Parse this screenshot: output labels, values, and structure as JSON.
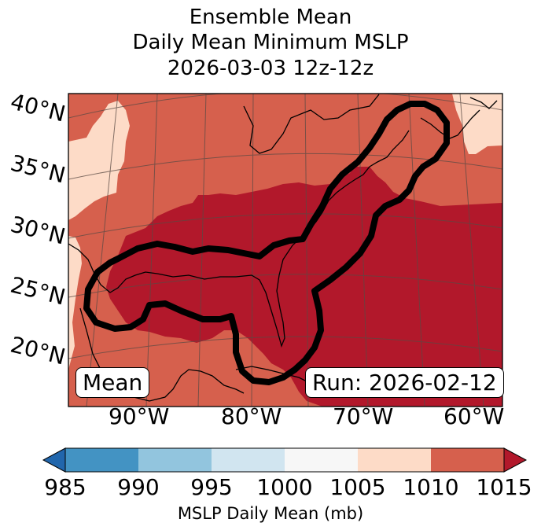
{
  "title": {
    "line1": "Ensemble Mean",
    "line2": "Daily Mean Minimum MSLP",
    "line3": "2026-03-03 12z-12z"
  },
  "map": {
    "lat_labels": [
      "40°N",
      "35°N",
      "30°N",
      "25°N",
      "20°N"
    ],
    "lon_labels": [
      "90°W",
      "80°W",
      "70°W",
      "60°W"
    ],
    "colors": {
      "c1005_1010": "#fddbc7",
      "c1010_1015": "#d6604d",
      "c1015_plus": "#b2182b",
      "contour": "#000000",
      "coastline": "#000000",
      "graticule": "#5a4a44"
    }
  },
  "badges": {
    "left": "Mean",
    "right": "Run: 2026-02-12"
  },
  "colorbar": {
    "label": "MSLP Daily Mean (mb)",
    "ticks": [
      "985",
      "990",
      "995",
      "1000",
      "1005",
      "1010",
      "1015"
    ],
    "colors": [
      "#2166ac",
      "#4393c3",
      "#92c5de",
      "#d1e5f0",
      "#f7f7f7",
      "#fddbc7",
      "#d6604d",
      "#b2182b"
    ],
    "extend": "both"
  }
}
